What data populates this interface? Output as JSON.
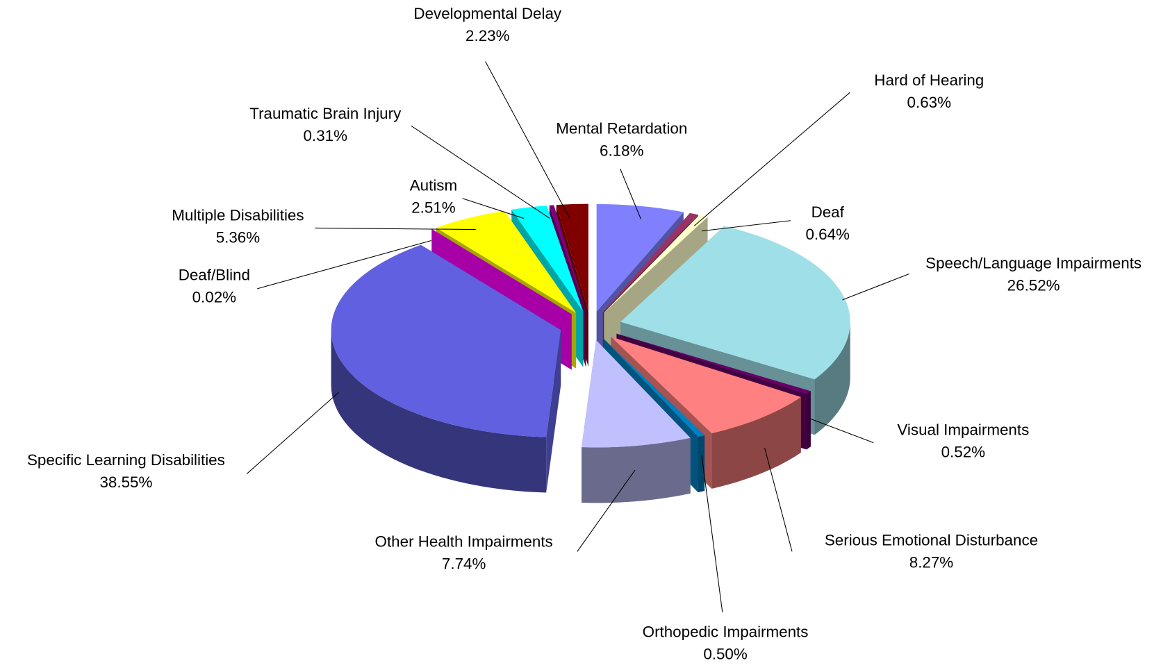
{
  "chart_data": {
    "type": "pie",
    "categories": [
      "Mental Retardation",
      "Hard of Hearing",
      "Deaf",
      "Speech/Language Impairments",
      "Visual Impairments",
      "Serious Emotional Disturbance",
      "Orthopedic Impairments",
      "Other Health Impairments",
      "Specific Learning Disabilities",
      "Deaf/Blind",
      "Multiple Disabilities",
      "Autism",
      "Traumatic Brain Injury",
      "Developmental Delay"
    ],
    "values": [
      6.18,
      0.63,
      0.64,
      26.52,
      0.52,
      8.27,
      0.5,
      7.74,
      38.55,
      0.02,
      5.36,
      2.51,
      0.31,
      2.23
    ],
    "value_labels": [
      "6.18%",
      "0.63%",
      "0.64%",
      "26.52%",
      "0.52%",
      "8.27%",
      "0.50%",
      "7.74%",
      "38.55%",
      "0.02%",
      "5.36%",
      "2.51%",
      "0.31%",
      "2.23%"
    ],
    "colors": [
      "#8080ff",
      "#993366",
      "#ffffcc",
      "#9fdfe8",
      "#660066",
      "#ff8080",
      "#0080c0",
      "#c0c0ff",
      "#6060e0",
      "#ff00ff",
      "#ffff00",
      "#00ffff",
      "#800080",
      "#800000"
    ]
  }
}
